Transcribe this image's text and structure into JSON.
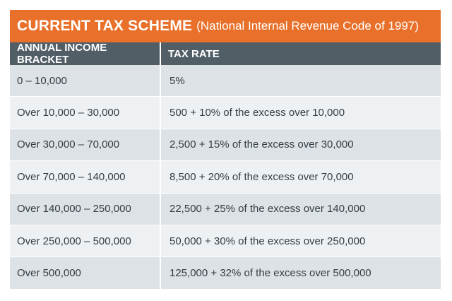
{
  "title": {
    "main": "CURRENT TAX SCHEME",
    "sub": "(National Internal Revenue Code of 1997)"
  },
  "table": {
    "headers": [
      "ANNUAL INCOME BRACKET",
      "TAX RATE"
    ],
    "rows": [
      {
        "bracket": "0 – 10,000",
        "rate": "5%"
      },
      {
        "bracket": "Over 10,000 – 30,000",
        "rate": "500 + 10% of the excess over 10,000"
      },
      {
        "bracket": "Over 30,000 – 70,000",
        "rate": "2,500 + 15% of the excess over 30,000"
      },
      {
        "bracket": "Over 70,000 – 140,000",
        "rate": "8,500 + 20% of the excess over 70,000"
      },
      {
        "bracket": "Over 140,000 – 250,000",
        "rate": "22,500 + 25% of the excess over 140,000"
      },
      {
        "bracket": "Over 250,000 – 500,000",
        "rate": "50,000 + 30% of the excess over 250,000"
      },
      {
        "bracket": "Over 500,000",
        "rate": "125,000 + 32% of the excess over 500,000"
      }
    ]
  },
  "colors": {
    "title_bg": "#e8702a",
    "header_bg": "#515e66",
    "row_odd": "#dde2e6",
    "row_even": "#eef1f3"
  }
}
